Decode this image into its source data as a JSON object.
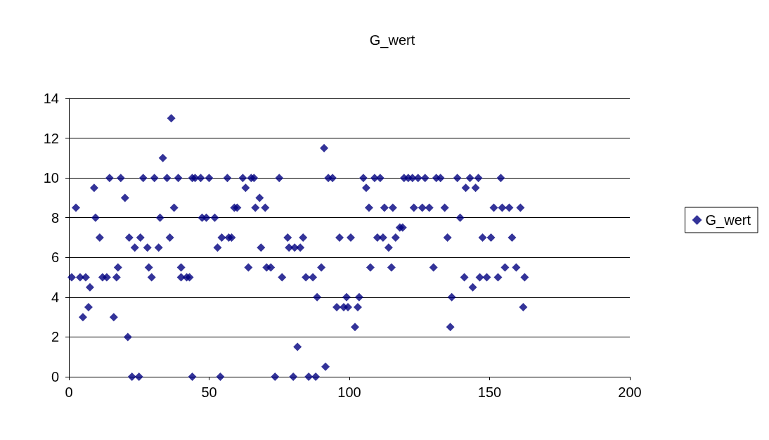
{
  "chart_data": {
    "type": "scatter",
    "title": "G_wert",
    "series": [
      {
        "name": "G_wert",
        "color": "#000080",
        "x": [
          1,
          2.5,
          4,
          5,
          6,
          7,
          7.5,
          9,
          9.5,
          11,
          12,
          13.5,
          14.5,
          16,
          17,
          17.5,
          18.5,
          20,
          21,
          21.5,
          22.5,
          23.5,
          25,
          25.5,
          26.5,
          28,
          28.5,
          29.5,
          30.5,
          32,
          32.5,
          33.5,
          35,
          36,
          36.5,
          37.5,
          39,
          40,
          40,
          42,
          43,
          44,
          44,
          45,
          47,
          47.5,
          49,
          50,
          52,
          53,
          54,
          54.5,
          56.5,
          57,
          58,
          59,
          60,
          62,
          63,
          64,
          65,
          66,
          66.5,
          68,
          68.5,
          70,
          70.5,
          72,
          73.5,
          75,
          76,
          78,
          78.5,
          80,
          80.5,
          81.5,
          82.5,
          83.5,
          84.5,
          85.5,
          87,
          88,
          88.5,
          90,
          91,
          91.5,
          92.5,
          94,
          95.5,
          96.5,
          98,
          99,
          99.5,
          100.5,
          102,
          103,
          103.5,
          105,
          106,
          107,
          107.5,
          109,
          110,
          111,
          112,
          112.5,
          114,
          115,
          115.5,
          116.5,
          118,
          119,
          119.5,
          121,
          122.5,
          123,
          124.5,
          126,
          127,
          128.5,
          130,
          131,
          132.5,
          134,
          135,
          136,
          136.5,
          138.5,
          139.5,
          141,
          141.5,
          143,
          144,
          145,
          146,
          146.5,
          147.5,
          149,
          150.5,
          151.5,
          153,
          154,
          154.5,
          155.5,
          157,
          158,
          159.5,
          161,
          162,
          162.5
        ],
        "values": [
          5,
          8.5,
          5,
          3,
          5,
          3.5,
          4.5,
          9.5,
          8,
          7,
          5,
          5,
          10,
          3,
          5,
          5.5,
          10,
          9,
          2,
          7,
          0,
          6.5,
          0,
          7,
          10,
          6.5,
          5.5,
          5,
          10,
          6.5,
          8,
          11,
          10,
          7,
          13,
          8.5,
          10,
          5.5,
          5,
          5,
          5,
          0,
          10,
          10,
          10,
          8,
          8,
          10,
          8,
          6.5,
          0,
          7,
          10,
          7,
          7,
          8.5,
          8.5,
          10,
          9.5,
          5.5,
          10,
          10,
          8.5,
          9,
          6.5,
          8.5,
          5.5,
          5.5,
          0,
          10,
          5,
          7,
          6.5,
          0,
          6.5,
          1.5,
          6.5,
          7,
          5,
          0,
          5,
          0,
          4,
          5.5,
          11.5,
          0.5,
          10,
          10,
          3.5,
          7,
          3.5,
          4,
          3.5,
          7,
          2.5,
          3.5,
          4,
          10,
          9.5,
          8.5,
          5.5,
          10,
          7,
          10,
          7,
          8.5,
          6.5,
          5.5,
          8.5,
          7,
          7.5,
          7.5,
          10,
          10,
          10,
          8.5,
          10,
          8.5,
          10,
          8.5,
          5.5,
          10,
          10,
          8.5,
          7,
          2.5,
          4,
          10,
          8,
          5,
          9.5,
          10,
          4.5,
          9.5,
          10,
          5,
          7,
          5,
          7,
          8.5,
          5,
          10,
          8.5,
          5.5,
          8.5,
          7,
          5.5,
          8.5,
          3.5,
          5
        ]
      }
    ],
    "xlim": [
      0,
      200
    ],
    "xticks": [
      0,
      50,
      100,
      150,
      200
    ],
    "ylim": [
      0,
      14
    ],
    "yticks": [
      0,
      2,
      4,
      6,
      8,
      10,
      12,
      14
    ],
    "grid": "y",
    "legend": "right",
    "marker": "diamond"
  }
}
